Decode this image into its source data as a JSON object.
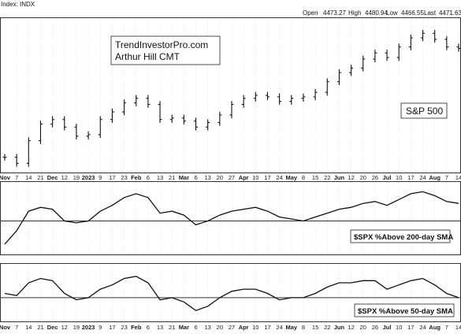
{
  "header": {
    "title": "Index: INDX",
    "open_label": "Open",
    "open": "4473.27",
    "high_label": "High",
    "high": "4480.94",
    "low_label": "Low",
    "low": "4466.55",
    "last_label": "Last",
    "last": "4471.63"
  },
  "credit": {
    "line1": "TrendInvestorPro.com",
    "line2": "Arthur Hill CMT"
  },
  "chart_data": [
    {
      "type": "ohlc",
      "series_label": "S&P 500",
      "x_tick_labels": [
        "Nov",
        "7",
        "14",
        "21",
        "Dec",
        "12",
        "19",
        "2023",
        "9",
        "17",
        "23",
        "Feb",
        "6",
        "13",
        "21",
        "Mar",
        "6",
        "13",
        "20",
        "27",
        "Apr",
        "10",
        "17",
        "24",
        "May",
        "8",
        "15",
        "22",
        "Jun",
        "12",
        "20",
        "26",
        "Jul",
        "10",
        "17",
        "24",
        "Aug",
        "7",
        "14"
      ],
      "close": [
        3740,
        3700,
        3850,
        3960,
        3990,
        3940,
        3880,
        3890,
        3990,
        4040,
        4100,
        4130,
        4090,
        3990,
        4000,
        3980,
        3940,
        3970,
        4020,
        4090,
        4130,
        4150,
        4140,
        4110,
        4130,
        4140,
        4170,
        4240,
        4300,
        4330,
        4390,
        4430,
        4400,
        4470,
        4530,
        4560,
        4520,
        4470,
        4460
      ],
      "ylim": [
        3650,
        4650
      ]
    },
    {
      "type": "line",
      "series_label": "$SPX %Above 200-day SMA",
      "values": [
        -2.0,
        1.5,
        6.5,
        7.5,
        7.0,
        4.0,
        3.5,
        4.0,
        6.5,
        8.0,
        10.0,
        11.0,
        10.0,
        6.0,
        6.5,
        5.5,
        3.0,
        4.0,
        5.5,
        6.5,
        7.0,
        7.5,
        6.5,
        5.0,
        4.5,
        4.0,
        5.0,
        6.0,
        7.0,
        7.5,
        8.5,
        9.0,
        8.0,
        9.5,
        11.0,
        11.5,
        10.5,
        9.0,
        8.5
      ],
      "reference_line": 4.0,
      "ylim": [
        -4,
        13
      ]
    },
    {
      "type": "line",
      "series_label": "$SPX %Above 50-day SMA",
      "values": [
        2.0,
        1.5,
        4.5,
        5.5,
        5.0,
        2.0,
        0.5,
        1.0,
        3.0,
        4.0,
        5.5,
        6.0,
        4.5,
        0.5,
        1.0,
        0.0,
        -2.0,
        -1.0,
        1.0,
        2.5,
        3.0,
        3.0,
        2.0,
        0.5,
        1.0,
        1.0,
        2.0,
        3.5,
        4.5,
        4.5,
        5.0,
        5.0,
        3.0,
        4.0,
        5.0,
        5.5,
        4.0,
        2.0,
        1.0
      ],
      "reference_line": 1.0,
      "ylim": [
        -4,
        8
      ]
    }
  ]
}
